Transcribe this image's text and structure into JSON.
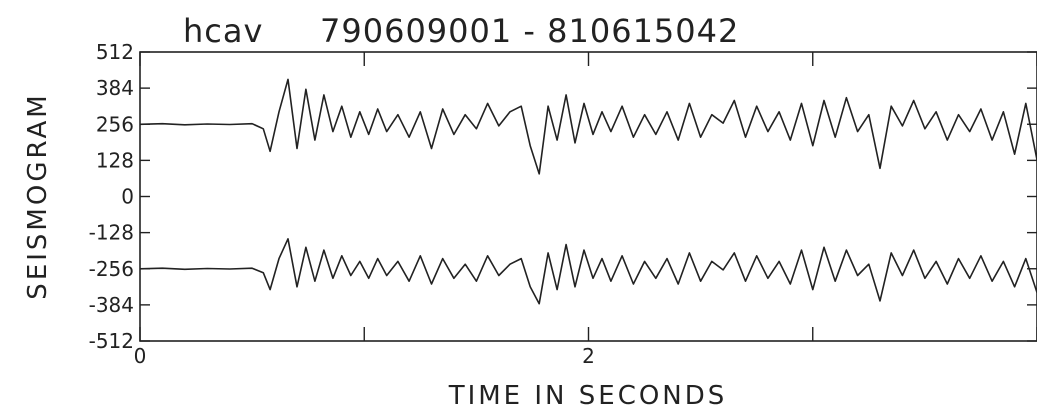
{
  "chart_data": {
    "type": "line",
    "title_left": "hcav",
    "title_right": "790609001  -  810615042",
    "xlabel": "TIME  IN  SECONDS",
    "ylabel": "SEISMOGRAM",
    "xlim": [
      0,
      4
    ],
    "ylim": [
      -512,
      512
    ],
    "x_ticks": [
      0,
      1,
      2,
      3,
      4
    ],
    "x_tick_labels": [
      "0",
      "",
      "2",
      "",
      ""
    ],
    "y_ticks": [
      512,
      384,
      256,
      128,
      0,
      -128,
      -256,
      -384,
      -512
    ],
    "y_tick_labels": [
      "512",
      "384",
      "256",
      "128",
      "0",
      "-128",
      "-256",
      "-384",
      "-512"
    ],
    "grid": false,
    "series": [
      {
        "x": [
          0,
          0.1,
          0.2,
          0.3,
          0.4,
          0.5,
          0.55,
          0.58,
          0.62,
          0.66,
          0.7,
          0.74,
          0.78,
          0.82,
          0.86,
          0.9,
          0.94,
          0.98,
          1.02,
          1.06,
          1.1,
          1.15,
          1.2,
          1.25,
          1.3,
          1.35,
          1.4,
          1.45,
          1.5,
          1.55,
          1.6,
          1.65,
          1.7,
          1.74,
          1.78,
          1.82,
          1.86,
          1.9,
          1.94,
          1.98,
          2.02,
          2.06,
          2.1,
          2.15,
          2.2,
          2.25,
          2.3,
          2.35,
          2.4,
          2.45,
          2.5,
          2.55,
          2.6,
          2.65,
          2.7,
          2.75,
          2.8,
          2.85,
          2.9,
          2.95,
          3.0,
          3.05,
          3.1,
          3.15,
          3.2,
          3.25,
          3.3,
          3.35,
          3.4,
          3.45,
          3.5,
          3.55,
          3.6,
          3.65,
          3.7,
          3.75,
          3.8,
          3.85,
          3.9,
          3.95,
          4.0
        ],
        "y": [
          256,
          258,
          254,
          257,
          255,
          258,
          240,
          160,
          300,
          415,
          170,
          380,
          200,
          360,
          230,
          320,
          210,
          300,
          220,
          310,
          230,
          290,
          210,
          300,
          170,
          310,
          220,
          290,
          240,
          330,
          250,
          300,
          320,
          180,
          80,
          320,
          200,
          360,
          190,
          330,
          220,
          300,
          230,
          320,
          210,
          290,
          220,
          300,
          200,
          330,
          210,
          290,
          260,
          340,
          210,
          320,
          230,
          300,
          200,
          330,
          180,
          340,
          210,
          350,
          230,
          290,
          100,
          320,
          250,
          340,
          240,
          300,
          200,
          290,
          230,
          310,
          200,
          300,
          150,
          330,
          130
        ]
      },
      {
        "x": [
          0,
          0.1,
          0.2,
          0.3,
          0.4,
          0.5,
          0.55,
          0.58,
          0.62,
          0.66,
          0.7,
          0.74,
          0.78,
          0.82,
          0.86,
          0.9,
          0.94,
          0.98,
          1.02,
          1.06,
          1.1,
          1.15,
          1.2,
          1.25,
          1.3,
          1.35,
          1.4,
          1.45,
          1.5,
          1.55,
          1.6,
          1.65,
          1.7,
          1.74,
          1.78,
          1.82,
          1.86,
          1.9,
          1.94,
          1.98,
          2.02,
          2.06,
          2.1,
          2.15,
          2.2,
          2.25,
          2.3,
          2.35,
          2.4,
          2.45,
          2.5,
          2.55,
          2.6,
          2.65,
          2.7,
          2.75,
          2.8,
          2.85,
          2.9,
          2.95,
          3.0,
          3.05,
          3.1,
          3.15,
          3.2,
          3.25,
          3.3,
          3.35,
          3.4,
          3.45,
          3.5,
          3.55,
          3.6,
          3.65,
          3.7,
          3.75,
          3.8,
          3.85,
          3.9,
          3.95,
          4.0
        ],
        "y": [
          -256,
          -254,
          -258,
          -255,
          -257,
          -254,
          -270,
          -330,
          -220,
          -150,
          -320,
          -180,
          -300,
          -190,
          -290,
          -210,
          -280,
          -230,
          -290,
          -220,
          -280,
          -230,
          -300,
          -210,
          -310,
          -220,
          -290,
          -240,
          -300,
          -210,
          -280,
          -240,
          -220,
          -320,
          -380,
          -200,
          -330,
          -170,
          -320,
          -190,
          -290,
          -220,
          -300,
          -210,
          -310,
          -230,
          -290,
          -220,
          -310,
          -200,
          -300,
          -230,
          -260,
          -200,
          -300,
          -210,
          -290,
          -230,
          -310,
          -190,
          -330,
          -180,
          -300,
          -190,
          -280,
          -240,
          -370,
          -200,
          -280,
          -190,
          -290,
          -230,
          -310,
          -220,
          -290,
          -210,
          -300,
          -230,
          -320,
          -220,
          -340
        ]
      }
    ]
  }
}
